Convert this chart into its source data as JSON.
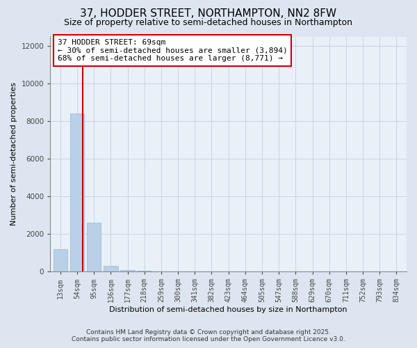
{
  "title": "37, HODDER STREET, NORTHAMPTON, NN2 8FW",
  "subtitle": "Size of property relative to semi-detached houses in Northampton",
  "xlabel": "Distribution of semi-detached houses by size in Northampton",
  "ylabel": "Number of semi-detached properties",
  "categories": [
    "13sqm",
    "54sqm",
    "95sqm",
    "136sqm",
    "177sqm",
    "218sqm",
    "259sqm",
    "300sqm",
    "341sqm",
    "382sqm",
    "423sqm",
    "464sqm",
    "505sqm",
    "547sqm",
    "588sqm",
    "629sqm",
    "670sqm",
    "711sqm",
    "752sqm",
    "793sqm",
    "834sqm"
  ],
  "values": [
    1200,
    8400,
    2600,
    300,
    80,
    25,
    10,
    5,
    3,
    2,
    1,
    1,
    1,
    0,
    0,
    0,
    0,
    0,
    0,
    0,
    0
  ],
  "bar_color": "#b8d0e8",
  "bar_edge_color": "#9ab8d8",
  "property_line_x": 1.35,
  "property_line_color": "#cc0000",
  "annotation_title": "37 HODDER STREET: 69sqm",
  "annotation_line1": "← 30% of semi-detached houses are smaller (3,894)",
  "annotation_line2": "68% of semi-detached houses are larger (8,771) →",
  "annotation_box_color": "#cc0000",
  "ylim": [
    0,
    12500
  ],
  "yticks": [
    0,
    2000,
    4000,
    6000,
    8000,
    10000,
    12000
  ],
  "footer_line1": "Contains HM Land Registry data © Crown copyright and database right 2025.",
  "footer_line2": "Contains public sector information licensed under the Open Government Licence v3.0.",
  "bg_color": "#dde6f0",
  "plot_bg_color": "#e8f0f8",
  "title_fontsize": 11,
  "subtitle_fontsize": 9,
  "annotation_fontsize": 8,
  "tick_fontsize": 7,
  "ylabel_fontsize": 8,
  "xlabel_fontsize": 8,
  "footer_fontsize": 6.5
}
